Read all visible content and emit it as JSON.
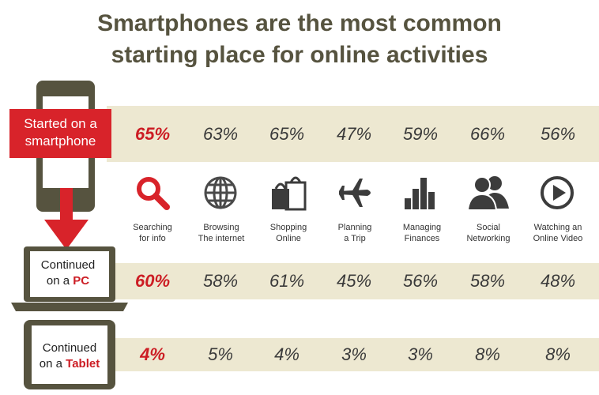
{
  "title": {
    "line1": "Smartphones are the most common",
    "line2": "starting place for online activities"
  },
  "rows": {
    "smartphone": {
      "label_line1": "Started on a",
      "label_line2": "smartphone",
      "values": [
        "65%",
        "63%",
        "65%",
        "47%",
        "59%",
        "66%",
        "56%"
      ]
    },
    "pc": {
      "label_line1": "Continued",
      "label_prefix": "on a",
      "label_emph": "PC",
      "values": [
        "60%",
        "58%",
        "61%",
        "45%",
        "56%",
        "58%",
        "48%"
      ]
    },
    "tablet": {
      "label_line1": "Continued",
      "label_prefix": "on a",
      "label_emph": "Tablet",
      "values": [
        "4%",
        "5%",
        "4%",
        "3%",
        "3%",
        "8%",
        "8%"
      ]
    }
  },
  "activities": [
    {
      "line1": "Searching",
      "line2": "for info",
      "icon": "magnifier-icon"
    },
    {
      "line1": "Browsing",
      "line2": "The internet",
      "icon": "globe-icon"
    },
    {
      "line1": "Shopping",
      "line2": "Online",
      "icon": "shopping-bags-icon"
    },
    {
      "line1": "Planning",
      "line2": "a Trip",
      "icon": "airplane-icon"
    },
    {
      "line1": "Managing",
      "line2": "Finances",
      "icon": "bar-chart-icon"
    },
    {
      "line1": "Social",
      "line2": "Networking",
      "icon": "people-icon"
    },
    {
      "line1": "Watching an",
      "line2": "Online Video",
      "icon": "play-icon"
    }
  ],
  "colors": {
    "accent_red": "#d8232a",
    "band": "#ede8d1",
    "device": "#56533f",
    "title": "#56533f"
  }
}
